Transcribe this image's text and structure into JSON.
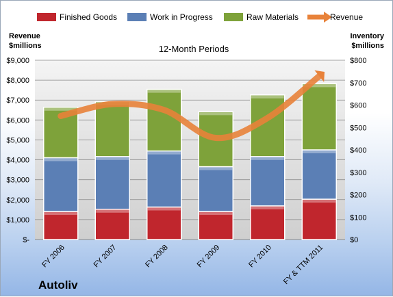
{
  "company": "Autoliv",
  "chart_data": {
    "type": "bar",
    "stacked": true,
    "subtitle": "12-Month Periods",
    "categories": [
      "FY 2006",
      "FY 2007",
      "FY 2008",
      "FY 2009",
      "FY 2010",
      "FY & TTM 2011"
    ],
    "series": [
      {
        "name": "Finished Goods",
        "axis": "right",
        "color": "#c0262d",
        "values": [
          125,
          135,
          145,
          125,
          150,
          180
        ]
      },
      {
        "name": "Work in Progress",
        "axis": "right",
        "color": "#5b7fb5",
        "values": [
          240,
          235,
          250,
          200,
          220,
          220
        ]
      },
      {
        "name": "Raw Materials",
        "axis": "right",
        "color": "#7ea23a",
        "values": [
          225,
          245,
          275,
          245,
          275,
          295
        ]
      },
      {
        "name": "Revenue",
        "type": "line",
        "axis": "left",
        "color": "#e8823a",
        "values": [
          6200,
          6800,
          6500,
          5100,
          6100,
          8200
        ]
      }
    ],
    "y_left": {
      "label_line1": "Revenue",
      "label_line2": "$millions",
      "range": [
        0,
        9000
      ],
      "ticks": [
        "$-",
        "$1,000",
        "$2,000",
        "$3,000",
        "$4,000",
        "$5,000",
        "$6,000",
        "$7,000",
        "$8,000",
        "$9,000"
      ]
    },
    "y_right": {
      "label_line1": "Inventory",
      "label_line2": "$millions",
      "range": [
        0,
        800
      ],
      "ticks": [
        "$0",
        "$100",
        "$200",
        "$300",
        "$400",
        "$500",
        "$600",
        "$700",
        "$800"
      ]
    },
    "grid": true,
    "legend_position": "top"
  }
}
